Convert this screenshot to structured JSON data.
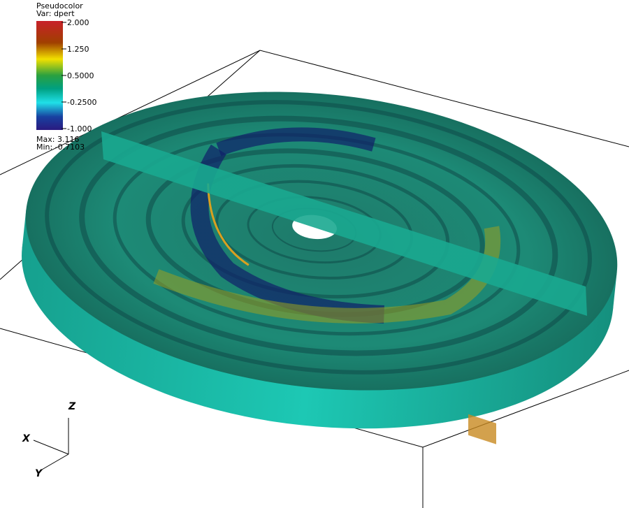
{
  "legend": {
    "title": "Pseudocolor",
    "variable": "Var: dpert",
    "ticks": [
      "2.000",
      "1.250",
      "0.5000",
      "-0.2500",
      "-1.000"
    ],
    "max": "Max: 3.116",
    "min": "Min: -0.7103"
  },
  "axes": {
    "z": "Z",
    "x": "X",
    "y": "Y"
  }
}
